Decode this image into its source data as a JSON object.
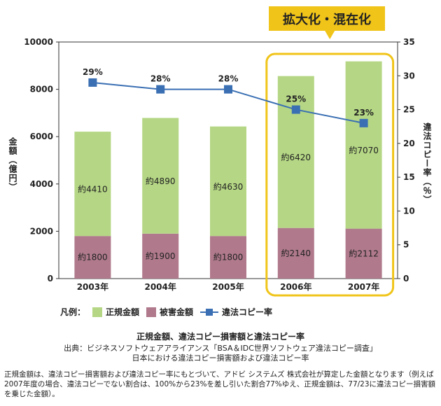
{
  "chart_data": {
    "type": "bar",
    "categories": [
      "2003年",
      "2004年",
      "2005年",
      "2006年",
      "2007年"
    ],
    "series": [
      {
        "name": "被害金額",
        "values": [
          1800,
          1900,
          1800,
          2140,
          2112
        ],
        "labels": [
          "約1800",
          "約1900",
          "約1800",
          "約2140",
          "約2112"
        ]
      },
      {
        "name": "正規金額",
        "values": [
          4410,
          4890,
          4630,
          6420,
          7070
        ],
        "labels": [
          "約4410",
          "約4890",
          "約4630",
          "約6420",
          "約7070"
        ]
      }
    ],
    "line": {
      "name": "違法コピー率",
      "values": [
        29,
        28,
        28,
        25,
        23
      ],
      "labels": [
        "29%",
        "28%",
        "28%",
        "25%",
        "23%"
      ]
    },
    "ylabel": "金額（億円）",
    "y2label": "違法コピー率（％）",
    "ylim": [
      0,
      10000
    ],
    "yticks": [
      "0",
      "2000",
      "4000",
      "6000",
      "8000",
      "10000"
    ],
    "y2lim": [
      0,
      35
    ],
    "y2ticks": [
      "0",
      "5",
      "10",
      "15",
      "20",
      "25",
      "30",
      "35"
    ],
    "stacked": true,
    "grid": false,
    "highlight": {
      "label": "拡大化・混在化",
      "from_category": "2006年",
      "to_category": "2007年"
    },
    "colors": {
      "regular": "#b5d785",
      "damage": "#b07a8c",
      "line": "#3a6fb3",
      "highlight": "#f0c419"
    }
  },
  "legend": {
    "title": "凡例：",
    "items": [
      "正規金額",
      "被害金額",
      "違法コピー率"
    ]
  },
  "caption": {
    "title": "正規金額、違法コピー損害額と違法コピー率",
    "source1": "出典：ビジネスソフトウェアアライアンス「BSA＆IDC世界ソフトウェア違法コピー調査」",
    "source2": "日本における違法コピー損害額および違法コピー率"
  },
  "note": "正規金額は、違法コピー損害額および違法コピー率にもとづいて、アドビ システムズ 株式会社が算定した金額となります（例えば2007年度の場合、違法コピーでない割合は、100%から23%を差し引いた割合77%ゆえ、正規金額は、77/23に違法コピー損害額を乗じた金額）。"
}
